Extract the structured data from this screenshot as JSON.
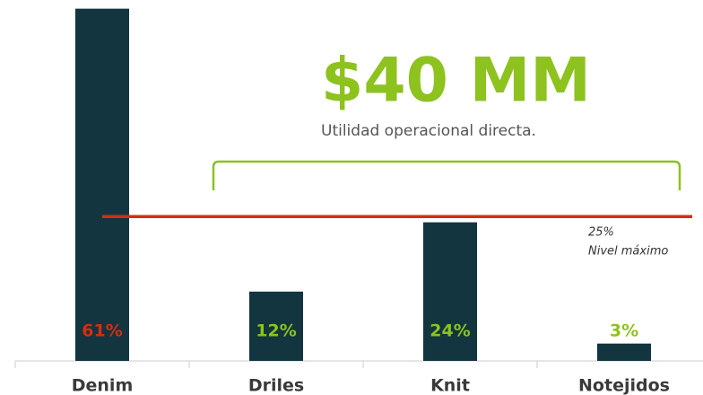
{
  "chart_data": {
    "type": "bar",
    "headline": "$40 MM",
    "subtitle": "Utilidad operacional directa.",
    "categories": [
      "Denim",
      "Driles",
      "Knit",
      "Notejidos"
    ],
    "values": [
      61,
      12,
      24,
      3
    ],
    "value_labels": [
      "61%",
      "12%",
      "24%",
      "3%"
    ],
    "value_label_colors": [
      "#d62d10",
      "#8dc21f",
      "#8dc21f",
      "#8dc21f"
    ],
    "color": "#12353f",
    "ylim": [
      0,
      62.5
    ],
    "reference_line": {
      "value": 25,
      "value_label": "25%",
      "label": "Nivel máximo",
      "color": "#d62d10"
    }
  }
}
